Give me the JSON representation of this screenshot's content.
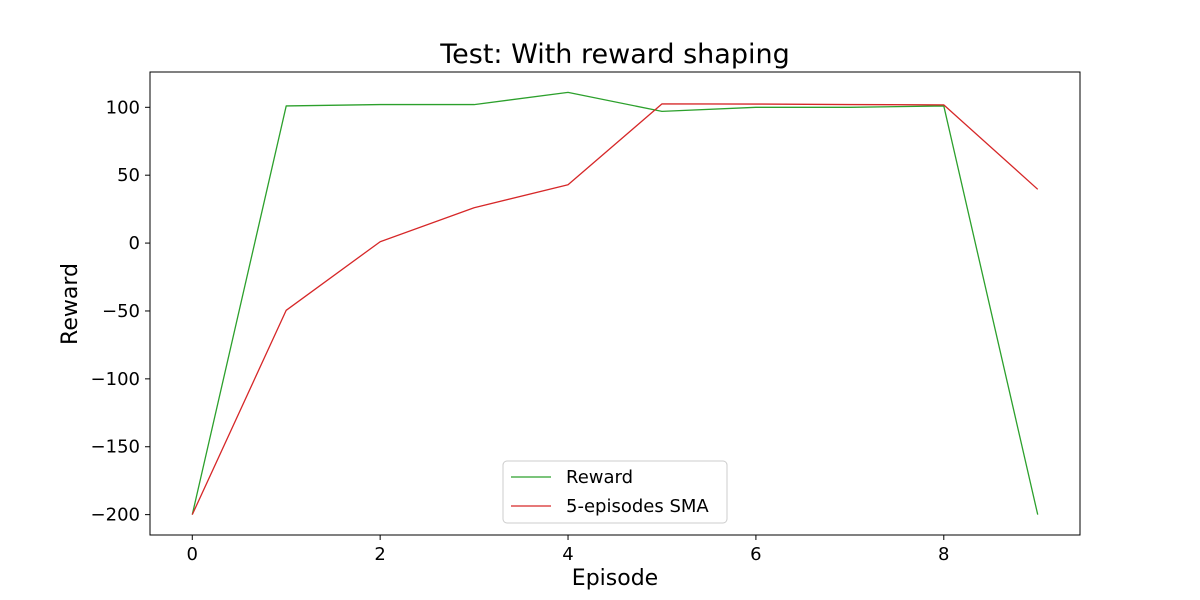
{
  "chart_data": {
    "type": "line",
    "title": "Test: With reward shaping",
    "xlabel": "Episode",
    "ylabel": "Reward",
    "x": [
      0,
      1,
      2,
      3,
      4,
      5,
      6,
      7,
      8,
      9
    ],
    "xlim": [
      -0.45,
      9.45
    ],
    "ylim": [
      -215,
      126
    ],
    "xticks": [
      0,
      2,
      4,
      6,
      8
    ],
    "xtick_labels": [
      "0",
      "2",
      "4",
      "6",
      "8"
    ],
    "yticks": [
      -200,
      -150,
      -100,
      -50,
      0,
      50,
      100
    ],
    "ytick_labels": [
      "−200",
      "−150",
      "−100",
      "−50",
      "0",
      "50",
      "100"
    ],
    "grid": false,
    "legend_position": "bottom-center",
    "series": [
      {
        "name": "Reward",
        "color": "#2ca02c",
        "values": [
          -200,
          101,
          102,
          102,
          111,
          97,
          100,
          100,
          101,
          -200
        ]
      },
      {
        "name": "5-episodes SMA",
        "color": "#d62728",
        "values": [
          -200,
          -49.5,
          1,
          26,
          43,
          102.5,
          102.4,
          102,
          101.8,
          39.6
        ]
      }
    ]
  }
}
